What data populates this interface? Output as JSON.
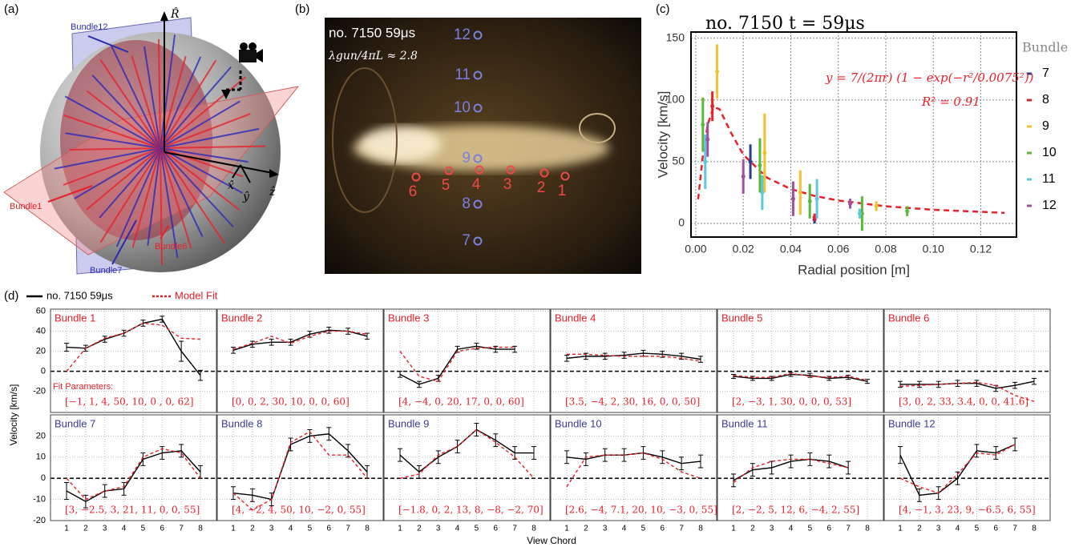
{
  "panel_a": {
    "label": "(a)",
    "axis_labels": [
      "R̂",
      "x̂",
      "ŷ",
      "ẑ"
    ],
    "bundle_labels": [
      "Bundle12",
      "Bundle1",
      "Bundle7",
      "Bundle6"
    ],
    "bundle_colors": [
      "#2a2ab8",
      "#e8202a",
      "#2a2ab8",
      "#e8202a"
    ]
  },
  "panel_b": {
    "label": "(b)",
    "title": "no. 7150 59μs",
    "ratio": "λgun/4πL ≈ 2.8",
    "blue_chords": [
      "12",
      "11",
      "10",
      "9",
      "8",
      "7"
    ],
    "red_chords": [
      "6",
      "5",
      "4",
      "3",
      "2",
      "1"
    ],
    "blue_color": "#7b7fe0",
    "red_color": "#f04848"
  },
  "panel_c": {
    "label": "(c)"
  },
  "panel_d": {
    "label": "(d)",
    "legend": [
      "no. 7150 59μs",
      "Model Fit"
    ],
    "ylabel": "Velocity [km/s]",
    "xlabel": "View Chord",
    "fit_parameters_label": "Fit Parameters:"
  },
  "chart_data": [
    {
      "type": "scatter",
      "title": "no. 7150  t = 59μs",
      "xlabel": "Radial position [m]",
      "ylabel": "Velocity [km/s]",
      "legend_title": "Bundle",
      "xlim": [
        -0.002,
        0.135
      ],
      "ylim": [
        -11,
        155
      ],
      "xticks": [
        {
          "value": 0,
          "label": "0.00"
        },
        0.02,
        0.04,
        0.06,
        0.08,
        {
          "value": 0.1,
          "label": "0.10"
        },
        0.12
      ],
      "yticks": [
        0,
        50,
        100,
        150
      ],
      "grid": true,
      "series": [
        {
          "name": "7",
          "color": "#2b3f8f",
          "x": [
            0.023,
            0.05
          ],
          "values": [
            50,
            3
          ],
          "errors": [
            14,
            3
          ]
        },
        {
          "name": "8",
          "color": "#e8202a",
          "x": [
            0.007,
            0.05
          ],
          "values": [
            95,
            5
          ],
          "errors": [
            12,
            3
          ]
        },
        {
          "name": "9",
          "color": "#f2c12e",
          "x": [
            0.009,
            0.029,
            0.044,
            0.076
          ],
          "values": [
            123,
            57,
            25,
            14
          ],
          "errors": [
            22,
            32,
            18,
            4
          ]
        },
        {
          "name": "10",
          "color": "#5cb83a",
          "x": [
            0.003,
            0.027,
            0.048,
            0.07,
            0.089
          ],
          "values": [
            80,
            47,
            18,
            8,
            10
          ],
          "errors": [
            22,
            22,
            14,
            14,
            4
          ]
        },
        {
          "name": "11",
          "color": "#5bc8e0",
          "x": [
            0.004,
            0.028,
            0.051,
            0.069
          ],
          "values": [
            50,
            25,
            20,
            8
          ],
          "errors": [
            22,
            14,
            16,
            4
          ]
        },
        {
          "name": "12",
          "color": "#a0509c",
          "x": [
            0.005,
            0.02,
            0.041,
            0.065
          ],
          "values": [
            68,
            38,
            20,
            16
          ],
          "errors": [
            14,
            14,
            14,
            4
          ]
        }
      ],
      "fit": {
        "color": "#e8202a",
        "x": [
          0.001,
          0.003,
          0.005,
          0.0075,
          0.01,
          0.015,
          0.02,
          0.03,
          0.04,
          0.05,
          0.06,
          0.08,
          0.1,
          0.13
        ],
        "values": [
          19.6,
          54.9,
          79.9,
          94.1,
          92.6,
          72.9,
          55.7,
          37.1,
          27.9,
          22.3,
          18.6,
          13.9,
          11.1,
          8.6
        ]
      },
      "annotations": [
        "y = 7/(2πr) (1 − exp(−r²/0.0075²))",
        "R² = 0.91"
      ]
    },
    {
      "type": "line",
      "title": "Bundle 1",
      "title_color": "#e8202a",
      "annotation": "[−1, 1, 4, 50, 10, 0 , 0, 62]",
      "ylim": [
        -41,
        62
      ],
      "yticks": [
        60,
        40,
        20,
        0,
        -20
      ],
      "series": [
        {
          "color": "#000000",
          "values": [
            24,
            23,
            32,
            38,
            48,
            52,
            20,
            -4
          ],
          "errors": [
            4,
            3,
            3,
            3,
            3,
            3,
            10,
            5
          ]
        },
        {
          "color": "#e8202a",
          "dashed": true,
          "values": [
            0,
            23,
            33,
            38,
            48,
            46,
            33,
            32
          ]
        }
      ]
    },
    {
      "type": "line",
      "title": "Bundle 2",
      "title_color": "#e8202a",
      "annotation": "[0, 0, 2, 30, 10, 0, 0, 60]",
      "ylim": [
        -41,
        62
      ],
      "yticks": [
        60,
        40,
        20,
        0,
        -20
      ],
      "series": [
        {
          "color": "#000000",
          "values": [
            21,
            27,
            29,
            29,
            37,
            41,
            40,
            35
          ],
          "errors": [
            3,
            3,
            3,
            3,
            3,
            3,
            3,
            3
          ]
        },
        {
          "color": "#e8202a",
          "dashed": true,
          "values": [
            22,
            28,
            35,
            28,
            35,
            40,
            40,
            37
          ]
        }
      ]
    },
    {
      "type": "line",
      "title": "Bundle 3",
      "title_color": "#e8202a",
      "annotation": "[4, −4, 0, 20, 17, 0, 0, 60]",
      "ylim": [
        -41,
        62
      ],
      "yticks": [
        60,
        40,
        20,
        0,
        -20
      ],
      "series": [
        {
          "color": "#000000",
          "values": [
            -3,
            -13,
            -7,
            22,
            25,
            22,
            22,
            null
          ],
          "errors": [
            3,
            3,
            3,
            3,
            3,
            3,
            3,
            null
          ]
        },
        {
          "color": "#e8202a",
          "dashed": true,
          "values": [
            20,
            -5,
            -10,
            20,
            23,
            24,
            24,
            null
          ]
        }
      ]
    },
    {
      "type": "line",
      "title": "Bundle 4",
      "title_color": "#e8202a",
      "annotation": "[3.5, −4, 2, 30, 16, 0, 0, 50]",
      "ylim": [
        -41,
        62
      ],
      "yticks": [
        60,
        40,
        20,
        0,
        -20
      ],
      "series": [
        {
          "color": "#000000",
          "values": [
            13,
            15,
            15,
            16,
            18,
            17,
            15,
            12
          ],
          "errors": [
            3,
            3,
            3,
            3,
            3,
            3,
            3,
            3
          ]
        },
        {
          "color": "#e8202a",
          "dashed": true,
          "values": [
            17,
            17,
            16,
            15,
            15,
            15,
            13,
            10
          ]
        }
      ]
    },
    {
      "type": "line",
      "title": "Bundle 5",
      "title_color": "#e8202a",
      "annotation": "[2, −3, 1, 30, 0, 0, 0, 53]",
      "ylim": [
        -41,
        62
      ],
      "yticks": [
        60,
        40,
        20,
        0,
        -20
      ],
      "series": [
        {
          "color": "#000000",
          "values": [
            -5,
            -7,
            -7,
            -3,
            -4,
            -7,
            -6,
            -10
          ],
          "errors": [
            2,
            2,
            2,
            2,
            2,
            2,
            2,
            2
          ]
        },
        {
          "color": "#e8202a",
          "dashed": true,
          "values": [
            -4,
            -6,
            -6,
            -2,
            -5,
            -6,
            -5,
            -9
          ]
        }
      ]
    },
    {
      "type": "line",
      "title": "Bundle 6",
      "title_color": "#e8202a",
      "annotation": "[3, 0, 2, 33, 3.4, 0, 0, 41.6]",
      "ylim": [
        -41,
        62
      ],
      "yticks": [
        60,
        40,
        20,
        0,
        -20
      ],
      "series": [
        {
          "color": "#000000",
          "values": [
            -13,
            -13,
            -13,
            -12,
            -12,
            -17,
            -14,
            -10
          ],
          "errors": [
            3,
            3,
            3,
            3,
            3,
            3,
            3,
            3
          ]
        },
        {
          "color": "#e8202a",
          "dashed": true,
          "values": [
            -15,
            -14,
            -13,
            -12,
            -11,
            -14,
            -24,
            -30
          ]
        }
      ]
    },
    {
      "type": "line",
      "title": "Bundle 7",
      "title_color": "#3a3a9c",
      "annotation": "[3, −2.5, 3, 21, 11, 0, 0, 55]",
      "ylim": [
        -20,
        30
      ],
      "yticks": [
        20,
        10,
        0,
        -10,
        -20
      ],
      "categories": [
        "1",
        "2",
        "3",
        "4",
        "5",
        "6",
        "7",
        "8"
      ],
      "series": [
        {
          "color": "#000000",
          "values": [
            -6,
            -11,
            -6,
            -5,
            9,
            12,
            13,
            3
          ],
          "errors": [
            4,
            3,
            3,
            3,
            3,
            3,
            3,
            3
          ]
        },
        {
          "color": "#e8202a",
          "dashed": true,
          "values": [
            0,
            -10,
            -6,
            -4,
            10,
            14,
            12,
            0
          ]
        }
      ]
    },
    {
      "type": "line",
      "title": "Bundle 8",
      "title_color": "#3a3a9c",
      "annotation": "[4, −2, 4, 50, 10, −2, 0, 55]",
      "ylim": [
        -20,
        30
      ],
      "yticks": [
        20,
        10,
        0,
        -10,
        -20
      ],
      "categories": [
        "1",
        "2",
        "3",
        "4",
        "5",
        "6",
        "7",
        "8"
      ],
      "series": [
        {
          "color": "#000000",
          "values": [
            -7,
            -8,
            -10,
            16,
            20,
            21,
            13,
            3
          ],
          "errors": [
            3,
            3,
            3,
            3,
            3,
            3,
            3,
            3
          ]
        },
        {
          "color": "#e8202a",
          "dashed": true,
          "values": [
            -7,
            -15,
            -10,
            17,
            22,
            11,
            11,
            0
          ]
        }
      ]
    },
    {
      "type": "line",
      "title": "Bundle 9",
      "title_color": "#3a3a9c",
      "annotation": "[−1.8, 0, 2, 13, 8, −8, −2, 70]",
      "ylim": [
        -20,
        30
      ],
      "yticks": [
        20,
        10,
        0,
        -10,
        -20
      ],
      "categories": [
        "1",
        "2",
        "3",
        "4",
        "5",
        "6",
        "7",
        "8"
      ],
      "series": [
        {
          "color": "#000000",
          "values": [
            11,
            3,
            10,
            15,
            23,
            18,
            12,
            12
          ],
          "errors": [
            3,
            3,
            3,
            3,
            3,
            3,
            3,
            3
          ]
        },
        {
          "color": "#e8202a",
          "dashed": true,
          "values": [
            0,
            2,
            11,
            15,
            23,
            17,
            10,
            0
          ]
        }
      ]
    },
    {
      "type": "line",
      "title": "Bundle 10",
      "title_color": "#3a3a9c",
      "annotation": "[2.6, −4, 7.1, 20, 10, −3, 0, 55]",
      "ylim": [
        -20,
        30
      ],
      "yticks": [
        20,
        10,
        0,
        -10,
        -20
      ],
      "categories": [
        "1",
        "2",
        "3",
        "4",
        "5",
        "6",
        "7",
        "8"
      ],
      "series": [
        {
          "color": "#000000",
          "values": [
            10,
            9,
            11,
            11,
            12,
            10,
            7,
            8
          ],
          "errors": [
            3,
            3,
            3,
            3,
            3,
            3,
            3,
            3
          ]
        },
        {
          "color": "#e8202a",
          "dashed": true,
          "values": [
            -4,
            10,
            11,
            11,
            12,
            9,
            3,
            0
          ]
        }
      ]
    },
    {
      "type": "line",
      "title": "Bundle 11",
      "title_color": "#3a3a9c",
      "annotation": "[2, −2, 5, 12, 6, −4, 2, 55]",
      "ylim": [
        -20,
        30
      ],
      "yticks": [
        20,
        10,
        0,
        -10,
        -20
      ],
      "categories": [
        "1",
        "2",
        "3",
        "4",
        "5",
        "6",
        "7",
        "8"
      ],
      "series": [
        {
          "color": "#000000",
          "values": [
            -1,
            4,
            5,
            8,
            9,
            8,
            5,
            null
          ],
          "errors": [
            3,
            3,
            3,
            3,
            3,
            3,
            3,
            null
          ]
        },
        {
          "color": "#e8202a",
          "dashed": true,
          "values": [
            -2,
            5,
            8,
            9,
            9,
            7,
            5,
            null
          ]
        }
      ]
    },
    {
      "type": "line",
      "title": "Bundle 12",
      "title_color": "#3a3a9c",
      "annotation": "[4, −1, 3, 23, 9, −6.5, 6, 55]",
      "ylim": [
        -20,
        30
      ],
      "yticks": [
        20,
        10,
        0,
        -10,
        -20
      ],
      "categories": [
        "1",
        "2",
        "3",
        "4",
        "5",
        "6",
        "7",
        "8"
      ],
      "series": [
        {
          "color": "#000000",
          "values": [
            11,
            -8,
            -7,
            0,
            13,
            12,
            16,
            null
          ],
          "errors": [
            4,
            3,
            3,
            3,
            3,
            3,
            3,
            null
          ]
        },
        {
          "color": "#e8202a",
          "dashed": true,
          "values": [
            0,
            -4,
            -7,
            2,
            12,
            11,
            16,
            null
          ]
        }
      ]
    }
  ]
}
